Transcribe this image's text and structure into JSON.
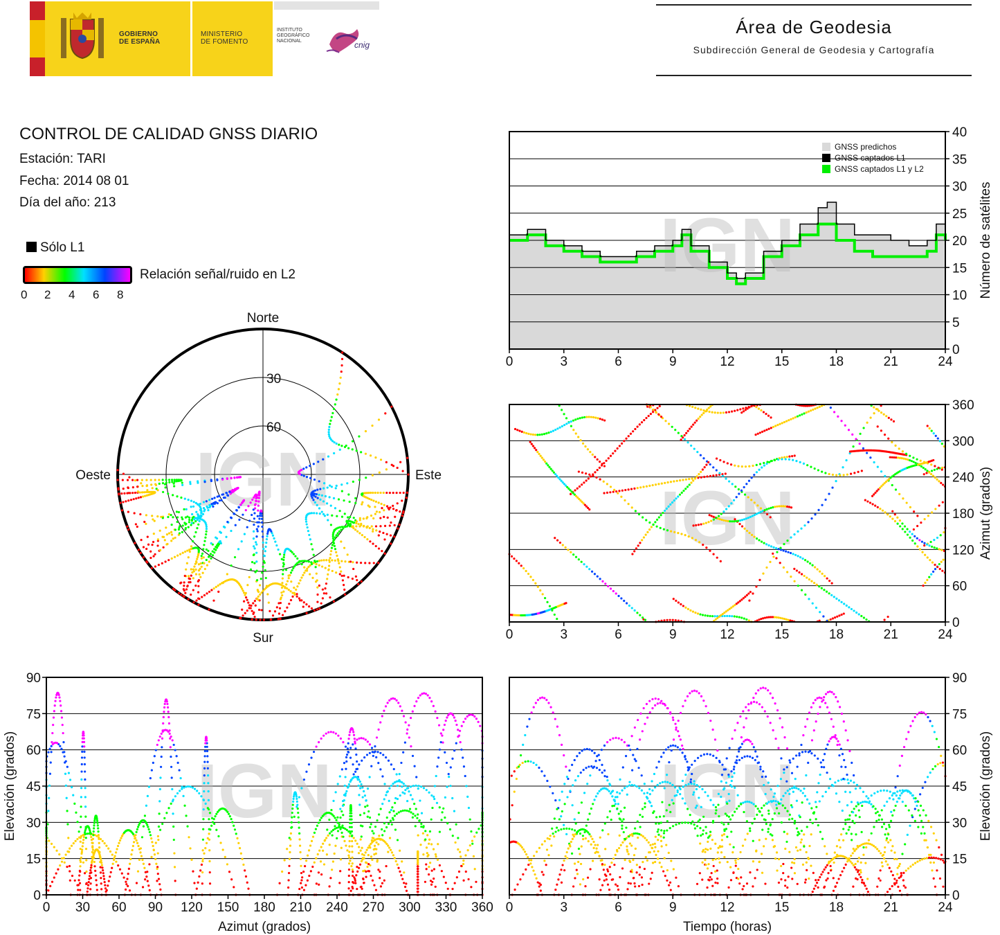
{
  "header": {
    "gov_label": "GOBIERNO\nDE ESPAÑA",
    "ministry_label": "MINISTERIO\nDE FOMENTO",
    "institute_label": "INSTITUTO\nGEOGRÁFICO\nNACIONAL",
    "cnig_label": "cnig",
    "area_title": "Área de Geodesia",
    "area_subtitle": "Subdirección General de Geodesia y Cartografía"
  },
  "report": {
    "title": "CONTROL DE CALIDAD GNSS DIARIO",
    "station": "Estación: TARI",
    "date": "Fecha: 2014 08 01",
    "doy": "Día del año: 213",
    "legend_l1": "Sólo L1",
    "colorbar_label": "Relación señal/ruido en L2",
    "colorbar_ticks": [
      "0",
      "2",
      "4",
      "6",
      "8"
    ]
  },
  "watermark": "IGN",
  "colors": {
    "predicted_fill": "#d9d9d9",
    "l1": "#000000",
    "l1l2": "#00ee00",
    "snr_scale": [
      "#ff0000",
      "#ffd000",
      "#00ff00",
      "#00e0ff",
      "#0044ff",
      "#ff00ff"
    ]
  },
  "chart_data": [
    {
      "id": "satellite-count",
      "type": "line",
      "title": "",
      "xlabel": "",
      "ylabel": "Número de satélites",
      "xlim": [
        0,
        24
      ],
      "ylim": [
        0,
        40
      ],
      "xticks": [
        "0",
        "3",
        "6",
        "9",
        "12",
        "15",
        "18",
        "21",
        "24"
      ],
      "yticks": [
        "0",
        "5",
        "10",
        "15",
        "20",
        "25",
        "30",
        "35",
        "40"
      ],
      "grid": true,
      "legend_position": "top-right",
      "x": [
        0,
        1,
        2,
        3,
        4,
        5,
        6,
        7,
        8,
        9,
        9.5,
        10,
        11,
        12,
        12.5,
        13,
        14,
        15,
        16,
        17,
        17.5,
        18,
        19,
        20,
        21,
        22,
        23,
        23.5,
        24
      ],
      "series": [
        {
          "name": "GNSS predichos",
          "values": [
            21,
            22,
            20,
            19,
            18,
            17,
            17,
            18,
            19,
            20,
            22,
            19,
            16,
            14,
            13,
            14,
            18,
            20,
            23,
            26,
            27,
            23,
            21,
            21,
            20,
            19,
            20,
            23,
            21
          ]
        },
        {
          "name": "GNSS captados L1",
          "values": [
            21,
            22,
            20,
            19,
            18,
            17,
            17,
            18,
            19,
            20,
            22,
            19,
            16,
            14,
            13,
            14,
            18,
            20,
            23,
            26,
            27,
            23,
            21,
            21,
            20,
            19,
            20,
            23,
            21
          ]
        },
        {
          "name": "GNSS captados L1 y L2",
          "values": [
            20,
            21,
            19,
            18,
            17,
            16,
            16,
            17,
            18,
            19,
            21,
            18,
            15,
            13,
            12,
            13,
            17,
            19,
            21,
            23,
            23,
            20,
            18,
            17,
            17,
            17,
            18,
            21,
            20
          ]
        }
      ]
    },
    {
      "id": "azimuth-time",
      "type": "scatter",
      "xlabel": "",
      "ylabel": "Azimut (grados)",
      "xlim": [
        0,
        24
      ],
      "ylim": [
        0,
        360
      ],
      "xticks": [
        "0",
        "3",
        "6",
        "9",
        "12",
        "15",
        "18",
        "21",
        "24"
      ],
      "yticks": [
        "0",
        "60",
        "120",
        "180",
        "240",
        "300",
        "360"
      ],
      "grid": true
    },
    {
      "id": "sky-plot",
      "type": "scatter",
      "labels": {
        "north": "Norte",
        "south": "Sur",
        "east": "Este",
        "west": "Oeste"
      },
      "ring_labels": [
        "30",
        "60"
      ],
      "grid": true
    },
    {
      "id": "elevation-azimuth",
      "type": "scatter",
      "xlabel": "Azimut (grados)",
      "ylabel": "Elevación (grados)",
      "xlim": [
        0,
        360
      ],
      "ylim": [
        0,
        90
      ],
      "xticks": [
        "0",
        "30",
        "60",
        "90",
        "120",
        "150",
        "180",
        "210",
        "240",
        "270",
        "300",
        "330",
        "360"
      ],
      "yticks": [
        "0",
        "15",
        "30",
        "45",
        "60",
        "75",
        "90"
      ],
      "grid": true
    },
    {
      "id": "elevation-time",
      "type": "scatter",
      "xlabel": "Tiempo (horas)",
      "ylabel": "Elevación (grados)",
      "xlim": [
        0,
        24
      ],
      "ylim": [
        0,
        90
      ],
      "xticks": [
        "0",
        "3",
        "6",
        "9",
        "12",
        "15",
        "18",
        "21",
        "24"
      ],
      "yticks": [
        "0",
        "15",
        "30",
        "45",
        "60",
        "75",
        "90"
      ],
      "grid": true
    }
  ]
}
